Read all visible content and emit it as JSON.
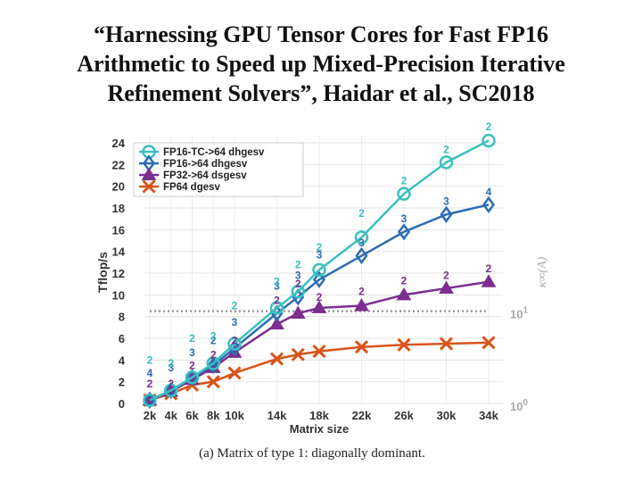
{
  "slide": {
    "title_lines": [
      "“Harnessing GPU Tensor Cores for Fast FP16",
      "Arithmetic to Speed up Mixed-Precision Iterative",
      "Refinement Solvers”, Haidar et al., SC2018"
    ],
    "caption": "(a) Matrix of type 1: diagonally dominant."
  },
  "chart_data": {
    "type": "line",
    "title": "",
    "xlabel": "Matrix size",
    "ylabel": "Tflop/s",
    "y2label": "κ∞(A)",
    "categories": [
      "2k",
      "4k",
      "6k",
      "8k",
      "10k",
      "14k",
      "18k",
      "22k",
      "26k",
      "30k",
      "34k"
    ],
    "x": [
      2000,
      4000,
      6000,
      8000,
      10000,
      14000,
      16000,
      18000,
      22000,
      26000,
      30000,
      34000
    ],
    "ylim": [
      0,
      24
    ],
    "yticks": [
      0,
      2,
      4,
      6,
      8,
      10,
      12,
      14,
      16,
      18,
      20,
      22,
      24
    ],
    "y2ticks": [
      {
        "base": "10",
        "exp": "1",
        "value": 8.5
      },
      {
        "base": "10",
        "exp": "0",
        "value": 0
      }
    ],
    "legend_position": "top-left",
    "series": [
      {
        "name": "FP16-TC->64 dhgesv",
        "color": "#3bbfc0",
        "marker": "circle",
        "values": [
          0.3,
          1.2,
          2.4,
          3.7,
          5.5,
          8.8,
          10.3,
          12.3,
          15.3,
          19.3,
          22.2,
          24.2
        ]
      },
      {
        "name": "FP16->64 dhgesv",
        "color": "#2c6db2",
        "marker": "diamond",
        "values": [
          0.3,
          1.2,
          2.4,
          3.5,
          5.1,
          8.3,
          9.8,
          11.4,
          13.6,
          15.8,
          17.4,
          18.3
        ]
      },
      {
        "name": "FP32->64 dsgesv",
        "color": "#7b2e8f",
        "marker": "triangle",
        "values": [
          0.3,
          1.1,
          2.2,
          3.3,
          4.7,
          7.3,
          8.3,
          8.8,
          9.0,
          10.0,
          10.6,
          11.2
        ]
      },
      {
        "name": "FP64 dgesv",
        "color": "#d95319",
        "marker": "x",
        "values": [
          0.3,
          0.9,
          1.7,
          2.0,
          2.8,
          4.1,
          4.5,
          4.8,
          5.2,
          5.4,
          5.5,
          5.6
        ]
      }
    ],
    "condition_number_line": {
      "color": "#999999",
      "style": "dotted",
      "value": 8.5,
      "x_start": 2000,
      "x_end": 34000
    },
    "iteration_annotations": [
      {
        "x": 2000,
        "y": 1.8,
        "text": "2",
        "series": 2
      },
      {
        "x": 2000,
        "y": 2.8,
        "text": "4",
        "series": 1
      },
      {
        "x": 2000,
        "y": 4.0,
        "text": "2",
        "series": 0
      },
      {
        "x": 4000,
        "y": 1.8,
        "text": "2",
        "series": 2
      },
      {
        "x": 4000,
        "y": 3.3,
        "text": "3",
        "series": 1
      },
      {
        "x": 4000,
        "y": 3.7,
        "text": "2",
        "series": 0
      },
      {
        "x": 6000,
        "y": 3.5,
        "text": "2",
        "series": 2
      },
      {
        "x": 6000,
        "y": 4.7,
        "text": "3",
        "series": 1
      },
      {
        "x": 6000,
        "y": 6.0,
        "text": "2",
        "series": 0
      },
      {
        "x": 8000,
        "y": 4.5,
        "text": "2",
        "series": 2
      },
      {
        "x": 8000,
        "y": 5.8,
        "text": "2",
        "series": 1
      },
      {
        "x": 8000,
        "y": 6.2,
        "text": "2",
        "series": 0
      },
      {
        "x": 10000,
        "y": 5.8,
        "text": "2",
        "series": 2
      },
      {
        "x": 10000,
        "y": 7.5,
        "text": "3",
        "series": 1
      },
      {
        "x": 10000,
        "y": 9.0,
        "text": "2",
        "series": 0
      },
      {
        "x": 14000,
        "y": 9.5,
        "text": "2",
        "series": 2
      },
      {
        "x": 14000,
        "y": 10.8,
        "text": "3",
        "series": 1
      },
      {
        "x": 14000,
        "y": 11.2,
        "text": "2",
        "series": 0
      },
      {
        "x": 16000,
        "y": 11.0,
        "text": "2",
        "series": 2
      },
      {
        "x": 16000,
        "y": 11.8,
        "text": "3",
        "series": 1
      },
      {
        "x": 16000,
        "y": 12.8,
        "text": "2",
        "series": 0
      },
      {
        "x": 18000,
        "y": 9.8,
        "text": "2",
        "series": 2
      },
      {
        "x": 18000,
        "y": 13.7,
        "text": "3",
        "series": 1
      },
      {
        "x": 18000,
        "y": 14.4,
        "text": "2",
        "series": 0
      },
      {
        "x": 22000,
        "y": 10.3,
        "text": "2",
        "series": 2
      },
      {
        "x": 22000,
        "y": 14.8,
        "text": "3",
        "series": 1
      },
      {
        "x": 22000,
        "y": 17.5,
        "text": "2",
        "series": 0
      },
      {
        "x": 26000,
        "y": 11.3,
        "text": "2",
        "series": 2
      },
      {
        "x": 26000,
        "y": 17.0,
        "text": "3",
        "series": 1
      },
      {
        "x": 26000,
        "y": 20.5,
        "text": "2",
        "series": 0
      },
      {
        "x": 30000,
        "y": 11.8,
        "text": "2",
        "series": 2
      },
      {
        "x": 30000,
        "y": 18.6,
        "text": "3",
        "series": 1
      },
      {
        "x": 30000,
        "y": 23.4,
        "text": "2",
        "series": 0
      },
      {
        "x": 34000,
        "y": 12.4,
        "text": "2",
        "series": 2
      },
      {
        "x": 34000,
        "y": 19.5,
        "text": "4",
        "series": 1
      },
      {
        "x": 34000,
        "y": 25.5,
        "text": "2",
        "series": 0
      }
    ]
  }
}
